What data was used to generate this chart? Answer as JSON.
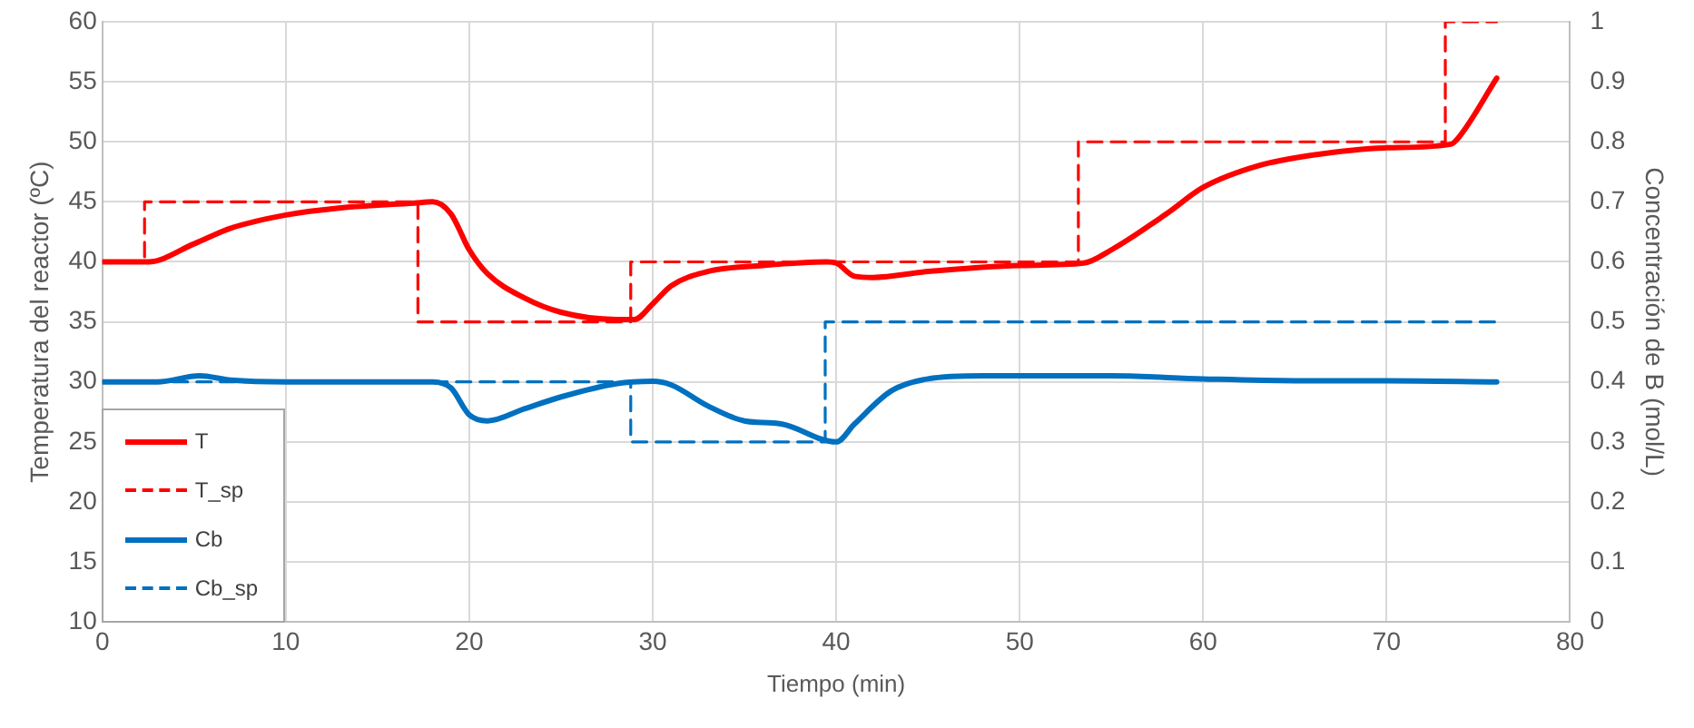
{
  "chart_data": {
    "type": "line",
    "xlabel": "Tiempo (min)",
    "ylabel": "Temperatura del reactor (ºC)",
    "y2label": "Concentración de B (mol/L)",
    "xlim": [
      0,
      80
    ],
    "xticks": [
      0,
      10,
      20,
      30,
      40,
      50,
      60,
      70,
      80
    ],
    "ylim": [
      10,
      60
    ],
    "yticks": [
      10,
      15,
      20,
      25,
      30,
      35,
      40,
      45,
      50,
      55,
      60
    ],
    "y2lim": [
      0,
      1
    ],
    "y2ticks": [
      0,
      0.1,
      0.2,
      0.3,
      0.4,
      0.5,
      0.6,
      0.7,
      0.8,
      0.9,
      1
    ],
    "grid": true,
    "legend": "bottom left",
    "marker": "none",
    "series": [
      {
        "name": "T",
        "color": "#ff0000",
        "line_style": "solid",
        "x": [
          0,
          2.5,
          5,
          7,
          10,
          13,
          17,
          18,
          19,
          20,
          21,
          23,
          25,
          28,
          29,
          30,
          31,
          33,
          36,
          39.5,
          40,
          41,
          42,
          45,
          50,
          53.5,
          55,
          58,
          60,
          63,
          66,
          70,
          73.5,
          74,
          76
        ],
        "values": [
          40,
          40,
          41.5,
          42.8,
          43.9,
          44.5,
          44.9,
          45,
          44,
          41,
          39,
          37,
          35.8,
          35.2,
          35.2,
          36.5,
          38,
          39.2,
          39.7,
          40,
          39.9,
          38.8,
          38.7,
          39.2,
          39.7,
          39.9,
          41,
          44,
          46.2,
          48,
          48.9,
          49.5,
          49.8,
          50.5,
          55.3
        ]
      },
      {
        "name": "T_sp",
        "color": "#ff0000",
        "line_style": "dashed",
        "x": [
          0,
          2.3,
          2.3,
          17.2,
          17.2,
          28.8,
          28.8,
          53.2,
          53.2,
          73.2,
          73.2,
          76
        ],
        "values": [
          40,
          40,
          45,
          45,
          35,
          35,
          40,
          40,
          50,
          50,
          60,
          60
        ]
      },
      {
        "name": "Cb",
        "color": "#0070c0",
        "line_style": "solid",
        "axis": "y2",
        "x": [
          0,
          3,
          5.3,
          7,
          10,
          18,
          19,
          20,
          21,
          23,
          25,
          28,
          30,
          31,
          33,
          35,
          37,
          40,
          41,
          43,
          45,
          48,
          55,
          60,
          65,
          70,
          76
        ],
        "values": [
          0.4,
          0.4,
          0.41,
          0.403,
          0.4,
          0.4,
          0.39,
          0.345,
          0.335,
          0.355,
          0.375,
          0.397,
          0.401,
          0.395,
          0.36,
          0.335,
          0.33,
          0.3,
          0.33,
          0.385,
          0.405,
          0.41,
          0.41,
          0.405,
          0.402,
          0.402,
          0.4
        ]
      },
      {
        "name": "Cb_sp",
        "color": "#0070c0",
        "line_style": "dashed",
        "axis": "y2",
        "x": [
          0,
          28.8,
          28.8,
          39.4,
          39.4,
          76
        ],
        "values": [
          0.4,
          0.4,
          0.3,
          0.3,
          0.5,
          0.5
        ]
      }
    ]
  }
}
